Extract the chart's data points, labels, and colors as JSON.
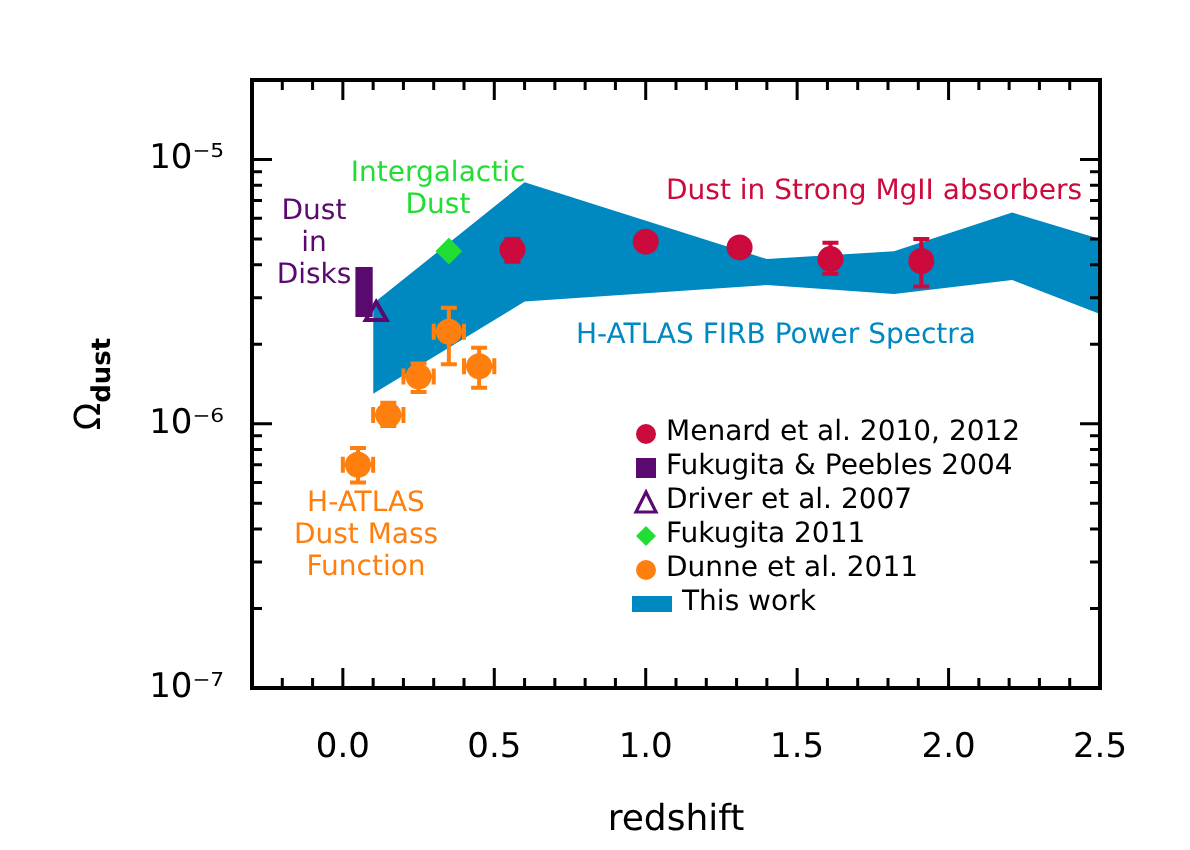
{
  "chart_data": {
    "type": "scatter",
    "xlabel": "redshift",
    "ylabel": "Ω$_{dust}$",
    "log": "y",
    "legend": "bottom right",
    "xlim": [
      -0.3,
      2.5
    ],
    "xticks": [
      {
        "value": -0.2,
        "label": null
      },
      {
        "value": -0.1,
        "label": null
      },
      {
        "value": 0,
        "label": "0.0"
      },
      {
        "value": 0.1,
        "label": null
      },
      {
        "value": 0.2,
        "label": null
      },
      {
        "value": 0.3,
        "label": null
      },
      {
        "value": 0.4,
        "label": null
      },
      {
        "value": 0.5,
        "label": "0.5"
      },
      {
        "value": 0.6,
        "label": null
      },
      {
        "value": 0.7,
        "label": null
      },
      {
        "value": 0.8,
        "label": null
      },
      {
        "value": 0.9,
        "label": null
      },
      {
        "value": 1,
        "label": "1.0"
      },
      {
        "value": 1.1,
        "label": null
      },
      {
        "value": 1.2,
        "label": null
      },
      {
        "value": 1.3,
        "label": null
      },
      {
        "value": 1.4,
        "label": null
      },
      {
        "value": 1.5,
        "label": "1.5"
      },
      {
        "value": 1.6,
        "label": null
      },
      {
        "value": 1.7,
        "label": null
      },
      {
        "value": 1.8,
        "label": null
      },
      {
        "value": 1.9,
        "label": null
      },
      {
        "value": 2,
        "label": "2.0"
      },
      {
        "value": 2.1,
        "label": null
      },
      {
        "value": 2.2,
        "label": null
      },
      {
        "value": 2.3,
        "label": null
      },
      {
        "value": 2.4,
        "label": null
      },
      {
        "value": 2.5,
        "label": "2.5"
      }
    ],
    "ylim": [
      1e-07,
      2e-05
    ],
    "yticks": [
      {
        "value": 1e-07,
        "label": "10⁻⁷"
      },
      {
        "value": 2e-07,
        "label": null
      },
      {
        "value": 3e-07,
        "label": null
      },
      {
        "value": 4e-07,
        "label": null
      },
      {
        "value": 5e-07,
        "label": null
      },
      {
        "value": 6e-07,
        "label": null
      },
      {
        "value": 7e-07,
        "label": null
      },
      {
        "value": 8e-07,
        "label": null
      },
      {
        "value": 9e-07,
        "label": null
      },
      {
        "value": 1e-06,
        "label": "10⁻⁶"
      },
      {
        "value": 2e-06,
        "label": null
      },
      {
        "value": 3e-06,
        "label": null
      },
      {
        "value": 4e-06,
        "label": null
      },
      {
        "value": 5e-06,
        "label": null
      },
      {
        "value": 6e-06,
        "label": null
      },
      {
        "value": 7e-06,
        "label": null
      },
      {
        "value": 8e-06,
        "label": null
      },
      {
        "value": 9e-06,
        "label": null
      },
      {
        "value": 1e-05,
        "label": "10⁻⁵"
      },
      {
        "value": 2e-05,
        "label": null
      }
    ],
    "series": [
      {
        "name": "This work",
        "type": "area",
        "color": "#0088c0",
        "x": [
          0.1,
          0.6,
          1.4,
          1.82,
          2.21,
          2.5
        ],
        "values": [
          null,
          null,
          null,
          null,
          null,
          null
        ],
        "lower": [
          1.3e-06,
          2.9e-06,
          3.35e-06,
          3.1e-06,
          3.5e-06,
          2.6e-06
        ],
        "upper": [
          2.85e-06,
          8.2e-06,
          4.2e-06,
          4.5e-06,
          6.3e-06,
          5e-06
        ]
      },
      {
        "name": "Menard et al. 2010, 2012",
        "marker": "circle",
        "color": "#cc0a3c",
        "x": [
          0.56,
          1.0,
          1.31,
          1.61,
          1.91
        ],
        "values": [
          4.56e-06,
          4.89e-06,
          4.65e-06,
          4.2e-06,
          4.13e-06
        ],
        "errors": [
          [
            4.1e-06,
            5e-06
          ],
          null,
          null,
          [
            3.7e-06,
            4.84e-06
          ],
          [
            3.31e-06,
            5e-06
          ]
        ]
      },
      {
        "name": "Fukugita & Peebles 2004",
        "type": "bar",
        "color": "#5a0a6e",
        "x": [
          0.07
        ],
        "base": [
          2.55e-06
        ],
        "values": [
          1.35e-06
        ]
      },
      {
        "name": "Driver et al. 2007",
        "marker": "triangle",
        "color": "#5a0a6e",
        "x": [
          0.11
        ],
        "values": [
          2.6e-06
        ]
      },
      {
        "name": "Fukugita 2011",
        "marker": "diamond",
        "color": "#22dd33",
        "x": [
          0.35
        ],
        "values": [
          4.5e-06
        ]
      },
      {
        "name": "Dunne et al. 2011",
        "marker": "circle",
        "color": "#ff7f0e",
        "x": [
          0.05,
          0.15,
          0.25,
          0.35,
          0.45
        ],
        "values": [
          7e-07,
          1.08e-06,
          1.51e-06,
          2.23e-06,
          1.65e-06
        ],
        "errors": [
          [
            6e-07,
            8.1e-07
          ],
          [
            9.8e-07,
            1.2e-06
          ],
          [
            1.32e-06,
            1.69e-06
          ],
          [
            1.68e-06,
            2.75e-06
          ],
          [
            1.37e-06,
            1.94e-06
          ]
        ],
        "xerrors": [
          0.05,
          0.05,
          0.05,
          0.05,
          0.05
        ]
      }
    ],
    "annotations": [
      "Dust\nin\nDisks",
      "Intergalactic\nDust",
      "Dust in Strong MgII absorbers",
      "H-ATLAS FIRB Power Spectra",
      "H-ATLAS\nDust Mass\nFunction"
    ]
  }
}
